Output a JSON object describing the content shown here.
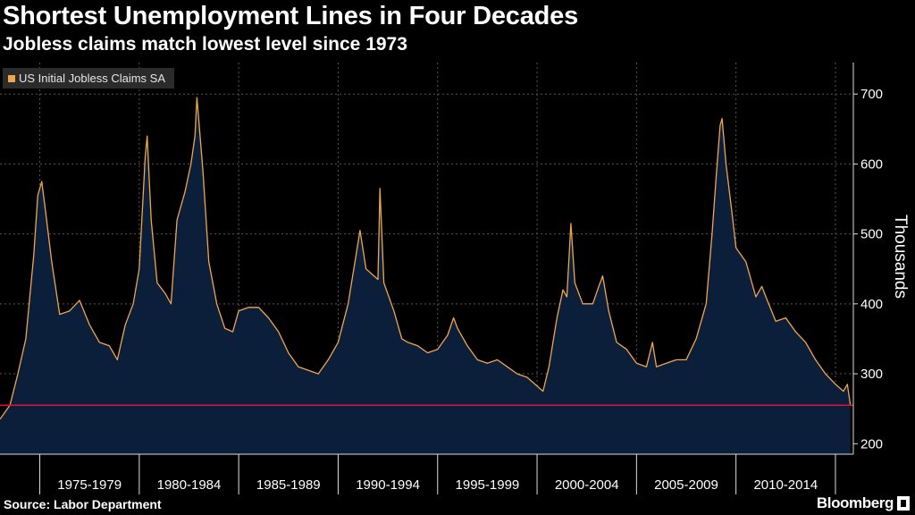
{
  "header": {
    "title": "Shortest Unemployment Lines in Four Decades",
    "subtitle": "Jobless claims match lowest level since 1973"
  },
  "footer": {
    "source": "Source: Labor Department",
    "brand": "Bloomberg"
  },
  "colors": {
    "line": "#f0a64a",
    "area": "#0b1f3a",
    "reference_line": "#e0103a",
    "grid": "#555555"
  },
  "chart_data": {
    "type": "area",
    "title": "Shortest Unemployment Lines in Four Decades",
    "subtitle": "Jobless claims match lowest level since 1973",
    "legend": [
      "US Initial Jobless Claims SA"
    ],
    "legend_position": "top-left",
    "ylabel": "Thousands",
    "y_axis_side": "right",
    "ylim": [
      185,
      745
    ],
    "yticks": [
      200,
      300,
      400,
      500,
      600,
      700
    ],
    "xlim": [
      1973.0,
      2015.9
    ],
    "x_period_labels": [
      "1975-1979",
      "1980-1984",
      "1985-1989",
      "1990-1994",
      "1995-1999",
      "2000-2004",
      "2005-2009",
      "2010-2014"
    ],
    "x_dividers": [
      1975,
      1980,
      1985,
      1990,
      1995,
      2000,
      2005,
      2010,
      2015
    ],
    "reference_line": 255,
    "series": [
      {
        "name": "US Initial Jobless Claims SA",
        "points": [
          [
            1973.0,
            235
          ],
          [
            1973.5,
            255
          ],
          [
            1973.9,
            300
          ],
          [
            1974.3,
            350
          ],
          [
            1974.7,
            470
          ],
          [
            1974.9,
            555
          ],
          [
            1975.1,
            575
          ],
          [
            1975.3,
            530
          ],
          [
            1975.6,
            460
          ],
          [
            1976.0,
            385
          ],
          [
            1976.5,
            390
          ],
          [
            1977.0,
            405
          ],
          [
            1977.5,
            370
          ],
          [
            1978.0,
            345
          ],
          [
            1978.5,
            340
          ],
          [
            1978.9,
            320
          ],
          [
            1979.3,
            370
          ],
          [
            1979.7,
            400
          ],
          [
            1980.0,
            450
          ],
          [
            1980.3,
            610
          ],
          [
            1980.4,
            640
          ],
          [
            1980.6,
            520
          ],
          [
            1980.9,
            430
          ],
          [
            1981.3,
            415
          ],
          [
            1981.6,
            400
          ],
          [
            1981.9,
            520
          ],
          [
            1982.3,
            560
          ],
          [
            1982.6,
            600
          ],
          [
            1982.8,
            640
          ],
          [
            1982.9,
            695
          ],
          [
            1983.2,
            590
          ],
          [
            1983.5,
            460
          ],
          [
            1983.9,
            400
          ],
          [
            1984.3,
            365
          ],
          [
            1984.7,
            360
          ],
          [
            1985.0,
            390
          ],
          [
            1985.5,
            395
          ],
          [
            1986.0,
            395
          ],
          [
            1986.5,
            380
          ],
          [
            1987.0,
            360
          ],
          [
            1987.5,
            330
          ],
          [
            1988.0,
            310
          ],
          [
            1988.5,
            305
          ],
          [
            1989.0,
            300
          ],
          [
            1989.5,
            320
          ],
          [
            1990.0,
            345
          ],
          [
            1990.5,
            400
          ],
          [
            1990.9,
            470
          ],
          [
            1991.1,
            505
          ],
          [
            1991.4,
            450
          ],
          [
            1991.8,
            440
          ],
          [
            1992.0,
            435
          ],
          [
            1992.1,
            565
          ],
          [
            1992.3,
            430
          ],
          [
            1992.8,
            390
          ],
          [
            1993.2,
            350
          ],
          [
            1993.5,
            345
          ],
          [
            1994.0,
            340
          ],
          [
            1994.5,
            330
          ],
          [
            1995.0,
            335
          ],
          [
            1995.5,
            355
          ],
          [
            1995.8,
            380
          ],
          [
            1996.0,
            365
          ],
          [
            1996.5,
            340
          ],
          [
            1997.0,
            320
          ],
          [
            1997.5,
            315
          ],
          [
            1998.0,
            320
          ],
          [
            1998.5,
            310
          ],
          [
            1999.0,
            300
          ],
          [
            1999.5,
            295
          ],
          [
            1999.9,
            285
          ],
          [
            2000.3,
            275
          ],
          [
            2000.6,
            310
          ],
          [
            2001.0,
            380
          ],
          [
            2001.3,
            420
          ],
          [
            2001.5,
            410
          ],
          [
            2001.7,
            515
          ],
          [
            2001.9,
            430
          ],
          [
            2002.3,
            400
          ],
          [
            2002.8,
            400
          ],
          [
            2003.1,
            425
          ],
          [
            2003.3,
            440
          ],
          [
            2003.6,
            390
          ],
          [
            2004.0,
            345
          ],
          [
            2004.5,
            335
          ],
          [
            2005.0,
            315
          ],
          [
            2005.5,
            310
          ],
          [
            2005.8,
            345
          ],
          [
            2006.0,
            310
          ],
          [
            2006.5,
            315
          ],
          [
            2007.0,
            320
          ],
          [
            2007.5,
            320
          ],
          [
            2008.0,
            350
          ],
          [
            2008.5,
            400
          ],
          [
            2008.8,
            500
          ],
          [
            2009.0,
            580
          ],
          [
            2009.2,
            655
          ],
          [
            2009.3,
            665
          ],
          [
            2009.5,
            600
          ],
          [
            2009.8,
            530
          ],
          [
            2010.0,
            480
          ],
          [
            2010.5,
            460
          ],
          [
            2011.0,
            410
          ],
          [
            2011.3,
            425
          ],
          [
            2011.5,
            410
          ],
          [
            2012.0,
            375
          ],
          [
            2012.5,
            380
          ],
          [
            2013.0,
            360
          ],
          [
            2013.5,
            345
          ],
          [
            2014.0,
            320
          ],
          [
            2014.5,
            300
          ],
          [
            2015.0,
            285
          ],
          [
            2015.4,
            275
          ],
          [
            2015.6,
            285
          ],
          [
            2015.75,
            255
          ]
        ]
      }
    ]
  }
}
